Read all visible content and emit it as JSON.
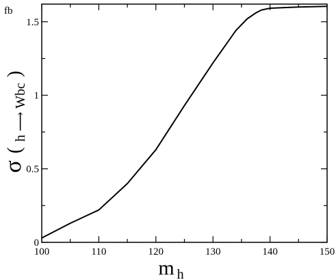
{
  "chart_data": {
    "type": "line",
    "title": "",
    "xlabel": {
      "main": "m",
      "sub": "h"
    },
    "ylabel": {
      "symbol": "σ",
      "open": "(",
      "process": "h ⟶ Wbc",
      "close": ")"
    },
    "unit": "fb",
    "xlim": [
      100,
      150
    ],
    "ylim": [
      0,
      1.62
    ],
    "xticks": [
      100,
      110,
      120,
      130,
      140,
      150
    ],
    "xtick_labels": [
      "100",
      "110",
      "120",
      "130",
      "140",
      "150"
    ],
    "yticks": [
      0,
      0.5,
      1,
      1.5
    ],
    "ytick_labels": [
      "0",
      "0.5",
      "1",
      "1.5"
    ],
    "x_minor_step": 5,
    "y_minor_step": 0.25,
    "grid": false,
    "legend": "none",
    "line_color": "#000000",
    "series": [
      {
        "x": [
          100,
          105,
          110,
          115,
          120,
          125,
          130,
          134,
          136,
          137.5,
          138.5,
          140,
          145,
          150
        ],
        "y": [
          0.03,
          0.13,
          0.22,
          0.4,
          0.63,
          0.93,
          1.22,
          1.44,
          1.52,
          1.56,
          1.58,
          1.592,
          1.6,
          1.605
        ]
      }
    ]
  }
}
